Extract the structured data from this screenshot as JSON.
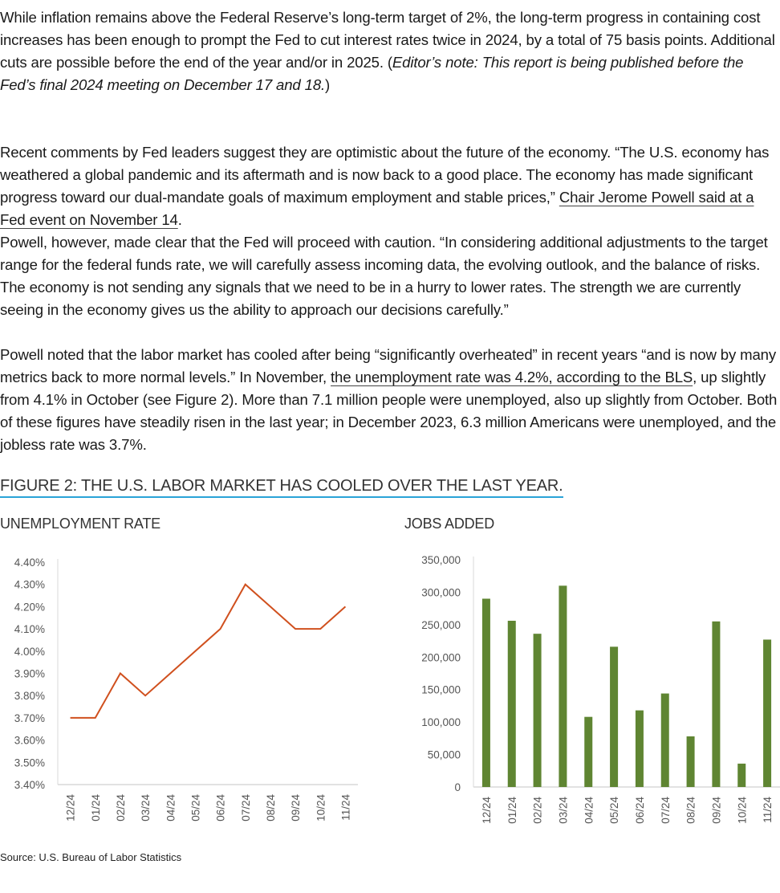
{
  "article": {
    "p1": {
      "text": "While inflation remains above the Federal Reserve’s long-term target of 2%, the long-term progress in containing cost increases has been enough to prompt the Fed to cut interest rates twice in 2024, by a total of 75 basis points. Additional cuts are possible before the end of the year and/or in 2025. (",
      "italic": "Editor’s note: This report is being published before the Fed’s final 2024 meeting on December 17 and 18.",
      "end": ")"
    },
    "p2": {
      "before": "Recent comments by Fed leaders suggest they are optimistic about the future of the economy. “The U.S. economy has weathered a global pandemic and its aftermath and is now back to a good place. The economy has made significant progress toward our dual-mandate goals of maximum employment and stable prices,” ",
      "link": "Chair Jerome Powell said at a Fed event on November 14",
      "after": "."
    },
    "p3": {
      "text": "Powell, however, made clear that the Fed will proceed with caution. “In considering additional adjustments to the target range for the federal funds rate, we will carefully assess incoming data, the evolving outlook, and the balance of risks. The economy is not sending any signals that we need to be in a hurry to lower rates. The strength we are currently seeing in the economy gives us the ability to approach our decisions carefully.”"
    },
    "p4": {
      "before": "Powell noted that the labor market has cooled after being “significantly overheated” in recent years “and is now by many metrics back to more normal levels.” In November, ",
      "link": "the unemployment rate was 4.2%, according to the BLS",
      "after": ", up slightly from 4.1% in October (see Figure 2). More than 7.1 million people were unemployed, also up slightly from October. Both of these figures have steadily risen in the last year; in December 2023, 6.3 million Americans were unemployed, and the jobless rate was 3.7%."
    }
  },
  "figure": {
    "title": "FIGURE 2: THE U.S. LABOR MARKET HAS COOLED OVER THE LAST YEAR.",
    "source": "Source: U.S. Bureau of Labor Statistics",
    "accent_color": "#2aa3d8"
  },
  "chart_data": [
    {
      "type": "line",
      "title": "UNEMPLOYMENT RATE",
      "categories": [
        "12/24",
        "01/24",
        "02/24",
        "03/24",
        "04/24",
        "05/24",
        "06/24",
        "07/24",
        "08/24",
        "09/24",
        "10/24",
        "11/24"
      ],
      "values": [
        3.7,
        3.7,
        3.9,
        3.8,
        3.9,
        4.0,
        4.1,
        4.3,
        4.2,
        4.1,
        4.1,
        4.2
      ],
      "ylim": [
        3.4,
        4.4
      ],
      "yticks": [
        "3.40%",
        "3.50%",
        "3.60%",
        "3.70%",
        "3.80%",
        "3.90%",
        "4.00%",
        "4.10%",
        "4.20%",
        "4.30%",
        "4.40%"
      ],
      "grid": false,
      "color": "#d0501e"
    },
    {
      "type": "bar",
      "title": "JOBS ADDED",
      "categories": [
        "12/24",
        "01/24",
        "02/24",
        "03/24",
        "04/24",
        "05/24",
        "06/24",
        "07/24",
        "08/24",
        "09/24",
        "10/24",
        "11/24"
      ],
      "values": [
        290000,
        256000,
        236000,
        310000,
        108000,
        216000,
        118000,
        144000,
        78000,
        255000,
        36000,
        227000
      ],
      "ylim": [
        0,
        350000
      ],
      "yticks": [
        "0",
        "50,000",
        "100,000",
        "150,000",
        "200,000",
        "250,000",
        "300,000",
        "350,000"
      ],
      "grid": false,
      "color": "#5f8532"
    }
  ]
}
